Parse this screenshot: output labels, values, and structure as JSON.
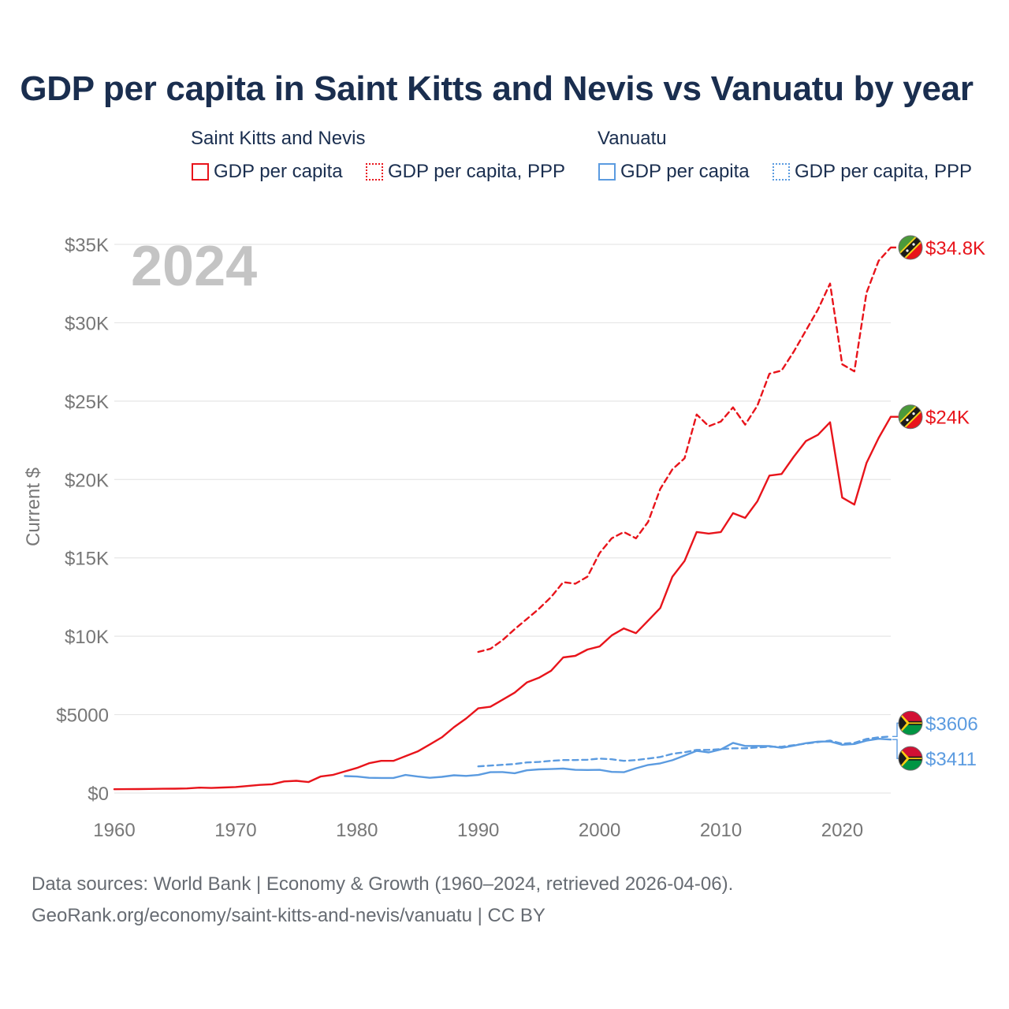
{
  "title": "GDP per capita in Saint Kitts and Nevis vs Vanuatu by year",
  "legend": {
    "groups": [
      {
        "name": "Saint Kitts and Nevis",
        "color": "#e8141b",
        "items": [
          "GDP per capita",
          "GDP per capita, PPP"
        ]
      },
      {
        "name": "Vanuatu",
        "color": "#5b9be0",
        "items": [
          "GDP per capita",
          "GDP per capita, PPP"
        ]
      }
    ]
  },
  "footer": {
    "line1": "Data sources: World Bank | Economy & Growth (1960–2024, retrieved 2026-04-06).",
    "line2": "GeoRank.org/economy/saint-kitts-and-nevis/vanuatu | CC BY"
  },
  "chart_data": {
    "type": "line",
    "year_label": "2024",
    "ylabel": "Current $",
    "xlim": [
      1960,
      2024
    ],
    "ylim": [
      0,
      35000
    ],
    "x_ticks": [
      1960,
      1970,
      1980,
      1990,
      2000,
      2010,
      2020
    ],
    "x_tick_labels": [
      "1960",
      "1970",
      "1980",
      "1990",
      "2000",
      "2010",
      "2020"
    ],
    "y_ticks": [
      0,
      5000,
      10000,
      15000,
      20000,
      25000,
      30000,
      35000
    ],
    "y_tick_labels": [
      "$0",
      "$5000",
      "$10K",
      "$15K",
      "$20K",
      "$25K",
      "$30K",
      "$35K"
    ],
    "colors": {
      "skn": "#e8141b",
      "vut": "#5b9be0"
    },
    "series": [
      {
        "id": "skn-gdp",
        "name": "Saint Kitts and Nevis GDP per capita",
        "country": "skn",
        "dashed": false,
        "end_label": "$24K",
        "x": [
          1960,
          1961,
          1962,
          1963,
          1964,
          1965,
          1966,
          1967,
          1968,
          1969,
          1970,
          1971,
          1972,
          1973,
          1974,
          1975,
          1976,
          1977,
          1978,
          1979,
          1980,
          1981,
          1982,
          1983,
          1984,
          1985,
          1986,
          1987,
          1988,
          1989,
          1990,
          1991,
          1992,
          1993,
          1994,
          1995,
          1996,
          1997,
          1998,
          1999,
          2000,
          2001,
          2002,
          2003,
          2004,
          2005,
          2006,
          2007,
          2008,
          2009,
          2010,
          2011,
          2012,
          2013,
          2014,
          2015,
          2016,
          2017,
          2018,
          2019,
          2020,
          2021,
          2022,
          2023,
          2024
        ],
        "values": [
          240,
          245,
          250,
          260,
          270,
          275,
          290,
          340,
          320,
          350,
          380,
          450,
          520,
          560,
          740,
          780,
          700,
          1050,
          1150,
          1380,
          1600,
          1900,
          2050,
          2050,
          2350,
          2650,
          3100,
          3550,
          4200,
          4750,
          5400,
          5500,
          5950,
          6400,
          7050,
          7350,
          7800,
          8650,
          8750,
          9150,
          9350,
          10050,
          10500,
          10200,
          11000,
          11800,
          13800,
          14800,
          16650,
          16550,
          16650,
          17850,
          17550,
          18600,
          20250,
          20350,
          21450,
          22450,
          22850,
          23650,
          18850,
          18400,
          21050,
          22650,
          24000
        ]
      },
      {
        "id": "skn-ppp",
        "name": "Saint Kitts and Nevis GDP per capita, PPP",
        "country": "skn",
        "dashed": true,
        "end_label": "$34.8K",
        "x": [
          1990,
          1991,
          1992,
          1993,
          1994,
          1995,
          1996,
          1997,
          1998,
          1999,
          2000,
          2001,
          2002,
          2003,
          2004,
          2005,
          2006,
          2007,
          2008,
          2009,
          2010,
          2011,
          2012,
          2013,
          2014,
          2015,
          2016,
          2017,
          2018,
          2019,
          2020,
          2021,
          2022,
          2023,
          2024
        ],
        "values": [
          9000,
          9200,
          9750,
          10450,
          11100,
          11750,
          12500,
          13450,
          13350,
          13800,
          15300,
          16250,
          16650,
          16250,
          17300,
          19400,
          20650,
          21350,
          24150,
          23400,
          23700,
          24600,
          23500,
          24700,
          26750,
          26950,
          28150,
          29500,
          30850,
          32500,
          27350,
          26900,
          31900,
          33950,
          34800
        ]
      },
      {
        "id": "vut-gdp",
        "name": "Vanuatu GDP per capita",
        "country": "vut",
        "dashed": false,
        "end_label": "$3411",
        "x": [
          1979,
          1980,
          1981,
          1982,
          1983,
          1984,
          1985,
          1986,
          1987,
          1988,
          1989,
          1990,
          1991,
          1992,
          1993,
          1994,
          1995,
          1996,
          1997,
          1998,
          1999,
          2000,
          2001,
          2002,
          2003,
          2004,
          2005,
          2006,
          2007,
          2008,
          2009,
          2010,
          2011,
          2012,
          2013,
          2014,
          2015,
          2016,
          2017,
          2018,
          2019,
          2020,
          2021,
          2022,
          2023,
          2024
        ],
        "values": [
          1080,
          1050,
          970,
          960,
          960,
          1150,
          1050,
          970,
          1030,
          1130,
          1090,
          1150,
          1330,
          1340,
          1260,
          1450,
          1510,
          1530,
          1560,
          1480,
          1470,
          1480,
          1350,
          1330,
          1580,
          1790,
          1890,
          2090,
          2390,
          2690,
          2590,
          2780,
          3200,
          3000,
          3000,
          2990,
          2880,
          3020,
          3180,
          3280,
          3290,
          3080,
          3130,
          3340,
          3460,
          3411
        ]
      },
      {
        "id": "vut-ppp",
        "name": "Vanuatu GDP per capita, PPP",
        "country": "vut",
        "dashed": true,
        "end_label": "$3606",
        "x": [
          1990,
          1991,
          1992,
          1993,
          1994,
          1995,
          1996,
          1997,
          1998,
          1999,
          2000,
          2001,
          2002,
          2003,
          2004,
          2005,
          2006,
          2007,
          2008,
          2009,
          2010,
          2011,
          2012,
          2013,
          2014,
          2015,
          2016,
          2017,
          2018,
          2019,
          2020,
          2021,
          2022,
          2023,
          2024
        ],
        "values": [
          1700,
          1750,
          1800,
          1850,
          1950,
          1980,
          2050,
          2100,
          2100,
          2120,
          2200,
          2150,
          2050,
          2100,
          2200,
          2300,
          2500,
          2600,
          2750,
          2750,
          2800,
          2850,
          2850,
          2900,
          2950,
          2950,
          3050,
          3150,
          3250,
          3350,
          3150,
          3200,
          3450,
          3550,
          3606
        ]
      }
    ]
  }
}
